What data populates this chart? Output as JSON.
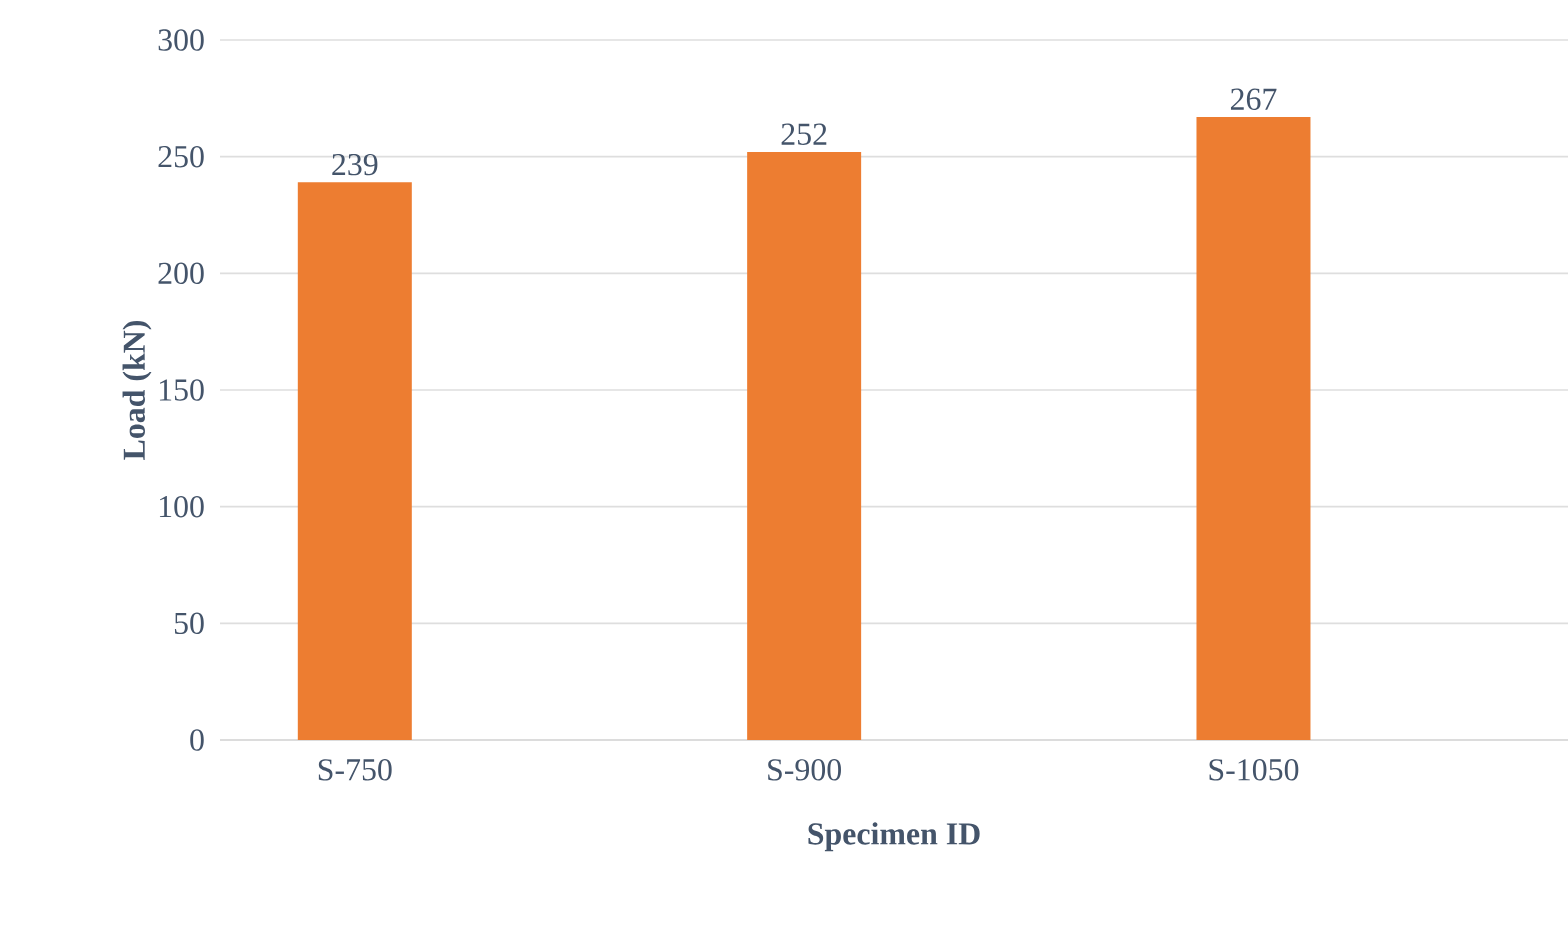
{
  "chart_data": {
    "type": "bar",
    "xlabel": "Specimen ID",
    "ylabel": "Load (kN)",
    "categories": [
      "S-750",
      "S-900",
      "S-1050"
    ],
    "values": [
      239,
      252,
      267
    ],
    "color": "#ed7d31",
    "ylim": [
      0,
      300
    ],
    "yticks": [
      0,
      50,
      100,
      150,
      200,
      250,
      300
    ],
    "grid": "y",
    "data_labels": true
  }
}
